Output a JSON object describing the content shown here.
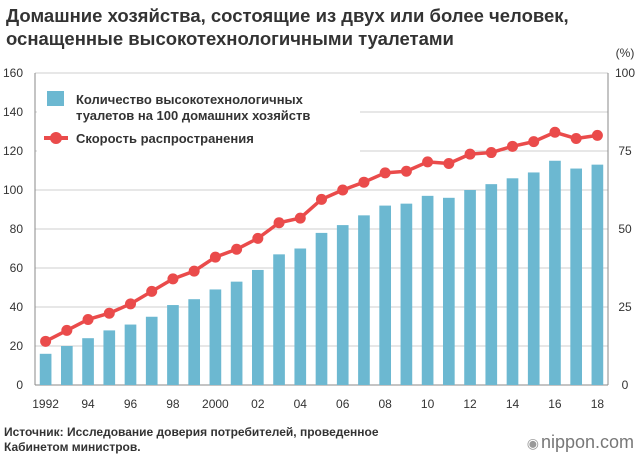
{
  "header": {
    "title_line1": "Домашние хозяйства, состоящие из двух или более человек,",
    "title_line2": "оснащенные высокотехнологичными туалетами"
  },
  "footer": {
    "source_line1": "Источник: Исследование доверия потребителей, проведенное",
    "source_line2": "Кабинетом министров.",
    "logo_text": "nippon.com"
  },
  "chart_data": {
    "type": "bar",
    "title": "Домашние хозяйства, состоящие из двух или более человек, оснащенные высокотехнологичными туалетами",
    "years": [
      1992,
      1993,
      1994,
      1995,
      1996,
      1997,
      1998,
      1999,
      2000,
      2001,
      2002,
      2003,
      2004,
      2005,
      2006,
      2007,
      2008,
      2009,
      2010,
      2011,
      2012,
      2013,
      2014,
      2015,
      2016,
      2017,
      2018
    ],
    "x_tick_labels": [
      "1992",
      "94",
      "96",
      "98",
      "2000",
      "02",
      "04",
      "06",
      "08",
      "10",
      "12",
      "14",
      "16",
      "18"
    ],
    "x_tick_indices": [
      0,
      2,
      4,
      6,
      8,
      10,
      12,
      14,
      16,
      18,
      20,
      22,
      24,
      26
    ],
    "y_left": {
      "ylim": [
        0,
        160
      ],
      "ticks": [
        "0",
        "20",
        "40",
        "60",
        "80",
        "100",
        "120",
        "140",
        "160"
      ]
    },
    "y_right": {
      "ylim": [
        0,
        100
      ],
      "ticks": [
        "0",
        "25",
        "50",
        "75",
        "100"
      ],
      "unit": "(%)"
    },
    "series": [
      {
        "name": "Количество высокотехнологичных туалетов на 100 домашних хозяйств",
        "type": "bar",
        "axis": "left",
        "color": "#6cb8d1",
        "values": [
          16,
          20,
          24,
          28,
          31,
          35,
          41,
          44,
          49,
          53,
          59,
          67,
          70,
          78,
          82,
          87,
          92,
          93,
          97,
          96,
          100,
          103,
          106,
          109,
          115,
          111,
          113
        ]
      },
      {
        "name": "Скорость распространения",
        "type": "line",
        "axis": "right",
        "color": "#ea4b4b",
        "values": [
          14,
          17.5,
          21,
          23,
          26,
          30,
          34,
          36.5,
          41,
          43.5,
          47,
          52,
          53.5,
          59.5,
          62.5,
          65,
          68,
          68.5,
          71.5,
          71,
          74,
          74.5,
          76.5,
          78,
          81,
          79,
          80
        ]
      }
    ],
    "legend": {
      "placement": "top-left",
      "bar_label_line1": "Количество высокотехнологичных",
      "bar_label_line2": "туалетов на 100 домашних хозяйств",
      "line_label": "Скорость распространения"
    },
    "grid": true
  }
}
